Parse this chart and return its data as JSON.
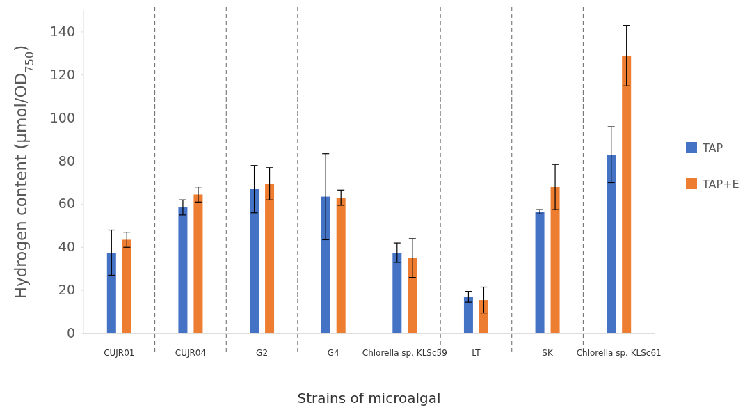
{
  "chart_data": {
    "type": "bar",
    "xlabel": "Strains of microalgal",
    "ylabel": "Hydrogen content (μmol/OD$_{750}$)",
    "categories": [
      "CUJR01",
      "CUJR04",
      "G2",
      "G4",
      "Chlorella sp. KLSc59",
      "LT",
      "SK",
      "Chlorella sp. KLSc61"
    ],
    "series": [
      {
        "name": "TAP",
        "color": "#4472c4",
        "values": [
          37.5,
          58.5,
          67,
          63.5,
          37.5,
          17,
          56.5,
          83
        ],
        "errors": [
          10.5,
          3.5,
          11,
          20,
          4.5,
          2.5,
          1,
          13
        ]
      },
      {
        "name": "TAP+E",
        "color": "#ed7d31",
        "values": [
          43.5,
          64.5,
          69.5,
          63,
          35,
          15.5,
          68,
          129
        ],
        "errors": [
          3.5,
          3.5,
          7.5,
          3.5,
          9,
          6,
          10.5,
          14
        ]
      }
    ],
    "ylim": [
      0,
      150
    ],
    "yticks": [
      0,
      20,
      40,
      60,
      80,
      100,
      120,
      140
    ],
    "grid": "x",
    "legend": "right"
  }
}
